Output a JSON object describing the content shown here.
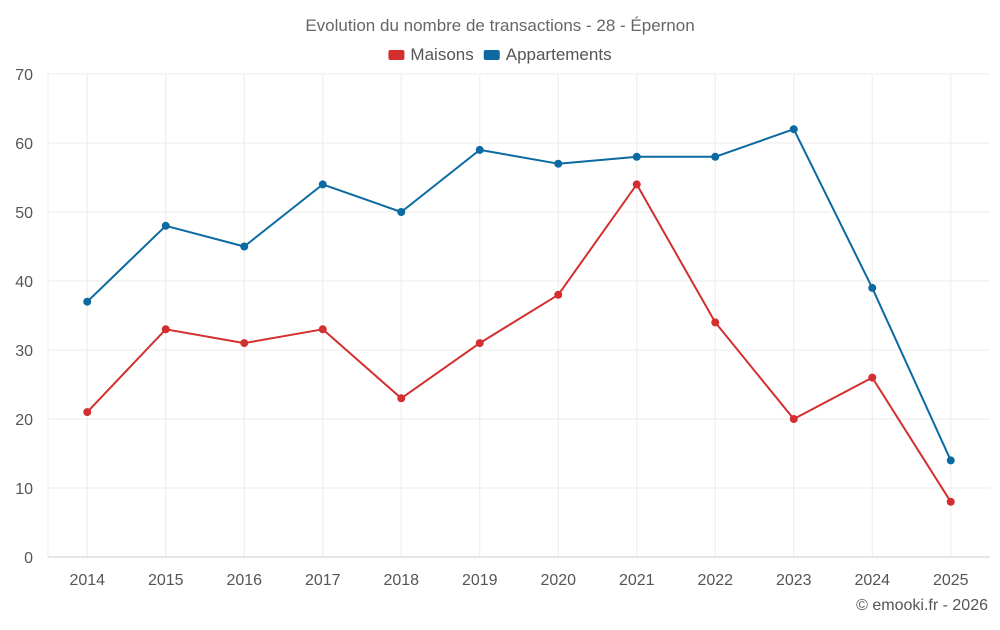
{
  "chart_data": {
    "type": "line",
    "title": "Evolution du nombre de transactions - 28 - Épernon",
    "xlabel": "",
    "ylabel": "",
    "categories": [
      "2014",
      "2015",
      "2016",
      "2017",
      "2018",
      "2019",
      "2020",
      "2021",
      "2022",
      "2023",
      "2024",
      "2025"
    ],
    "ylim": [
      0,
      70
    ],
    "yticks": [
      0,
      10,
      20,
      30,
      40,
      50,
      60,
      70
    ],
    "grid": true,
    "legend_position": "top-center",
    "series": [
      {
        "name": "Maisons",
        "color": "#d32f2f",
        "values": [
          21,
          33,
          31,
          33,
          23,
          31,
          38,
          54,
          34,
          20,
          26,
          8
        ]
      },
      {
        "name": "Appartements",
        "color": "#0a6aa1",
        "values": [
          37,
          48,
          45,
          54,
          50,
          59,
          57,
          58,
          58,
          62,
          39,
          14
        ]
      }
    ]
  },
  "credit": "© emooki.fr - 2026",
  "colors": {
    "grid": "#ebebeb",
    "axis": "#cccccc",
    "text": "#555555"
  }
}
